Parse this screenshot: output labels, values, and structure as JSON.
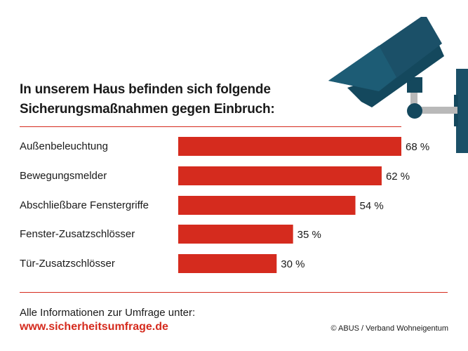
{
  "chart_data": {
    "type": "bar",
    "orientation": "horizontal",
    "title": "In unserem Haus befinden sich folgende Sicherungsmaßnahmen gegen Einbruch:",
    "title_lines": [
      "In unserem Haus befinden sich folgende",
      "Sicherungsmaßnahmen gegen Einbruch:"
    ],
    "categories": [
      "Außenbeleuchtung",
      "Bewegungsmelder",
      "Abschließbare Fenstergriffe",
      "Fenster-Zusatzschlösser",
      "Tür-Zusatzschlösser"
    ],
    "values": [
      68,
      62,
      54,
      35,
      30
    ],
    "value_labels": [
      "68 %",
      "62 %",
      "54 %",
      "35 %",
      "30 %"
    ],
    "unit": "%",
    "xlim": [
      0,
      100
    ],
    "grid": false,
    "bar_color": "#d52b1e"
  },
  "footer": {
    "info_text": "Alle Informationen zur Umfrage unter:",
    "link": "www.sicherheitsumfrage.de",
    "credit": "© ABUS / Verband Wohneigentum"
  },
  "colors": {
    "accent": "#d52b1e",
    "camera": "#1b5068",
    "camera_dark": "#14485d",
    "mount": "#b9b9b9"
  },
  "decoration": {
    "icon": "security-camera-icon"
  }
}
